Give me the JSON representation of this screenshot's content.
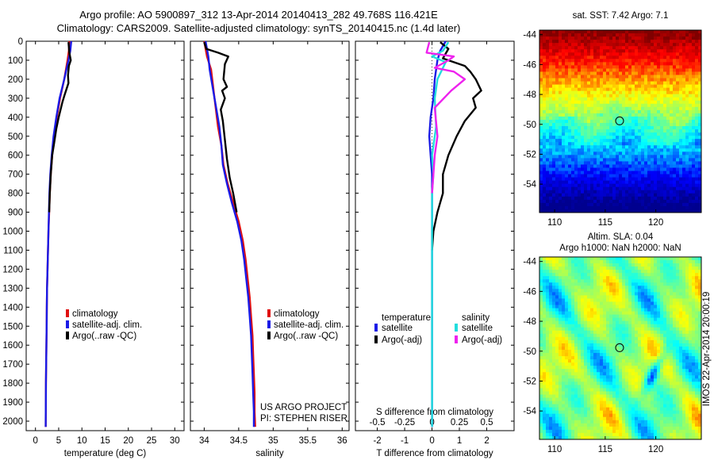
{
  "header": {
    "line1": "Argo profile: AO 5900897_312 13-Apr-2014 20140413_282 49.768S 116.421E",
    "line2": "Climatology: CARS2009. Satellite-adjusted climatology: synTS_20140415.nc (1.4d later)"
  },
  "colors": {
    "climatology": "#e01010",
    "satellite": "#1a1ae6",
    "argo": "#000000",
    "satellite_salinity": "#22dddd",
    "argo_salinity": "#ee22ee"
  },
  "chart_data": [
    {
      "type": "line",
      "name": "temperature-profile",
      "xlabel": "temperature (deg C)",
      "xlim": [
        -2,
        32
      ],
      "ylim": [
        2050,
        0
      ],
      "xticks": [
        0,
        5,
        10,
        15,
        20,
        25,
        30
      ],
      "yticks": [
        0,
        100,
        200,
        300,
        400,
        500,
        600,
        700,
        800,
        900,
        1000,
        1100,
        1200,
        1300,
        1400,
        1500,
        1600,
        1700,
        1800,
        1900,
        2000
      ],
      "legend": {
        "placement": "lower-center",
        "entries": [
          "climatology",
          "satellite-adj. clim.",
          "Argo(..raw -QC)"
        ]
      },
      "series": [
        {
          "name": "climatology",
          "color": "#e01010",
          "x": [
            7.3,
            7.2,
            6.9,
            6.2,
            5.3,
            4.6,
            4.0,
            3.6,
            3.3,
            3.1,
            2.95,
            2.8,
            2.7,
            2.6,
            2.5,
            2.45,
            2.4,
            2.35,
            2.3,
            2.25,
            2.2
          ],
          "y": [
            0,
            50,
            100,
            200,
            300,
            400,
            500,
            600,
            700,
            800,
            900,
            1000,
            1100,
            1200,
            1300,
            1400,
            1500,
            1600,
            1700,
            1800,
            2030
          ]
        },
        {
          "name": "satellite-adj. clim.",
          "color": "#1a1ae6",
          "x": [
            7.7,
            7.5,
            7.1,
            6.2,
            5.2,
            4.5,
            3.9,
            3.5,
            3.2,
            3.0,
            2.9,
            2.8,
            2.7,
            2.6,
            2.5,
            2.45,
            2.4,
            2.35,
            2.3,
            2.25,
            2.2
          ],
          "y": [
            0,
            50,
            100,
            200,
            300,
            400,
            500,
            600,
            700,
            800,
            900,
            1000,
            1100,
            1200,
            1300,
            1400,
            1500,
            1600,
            1700,
            1800,
            2030
          ]
        },
        {
          "name": "Argo(..raw -QC)",
          "color": "#000000",
          "x": [
            7.1,
            7.3,
            7.6,
            7.2,
            7.0,
            7.1,
            6.3,
            5.8,
            5.0,
            4.5,
            4.0,
            3.6,
            3.3,
            3.1,
            2.95
          ],
          "y": [
            5,
            60,
            100,
            130,
            180,
            220,
            280,
            320,
            400,
            460,
            540,
            600,
            700,
            800,
            900
          ]
        }
      ]
    },
    {
      "type": "line",
      "name": "salinity-profile",
      "xlabel": "salinity",
      "xlim": [
        33.8,
        36.1
      ],
      "ylim": [
        2050,
        0
      ],
      "xticks": [
        34,
        34.5,
        35,
        35.5,
        36
      ],
      "legend": {
        "placement": "lower-center",
        "entries": [
          "climatology",
          "satellite-adj. clim.",
          "Argo(..raw -QC)"
        ]
      },
      "series": [
        {
          "name": "climatology",
          "color": "#e01010",
          "x": [
            34.0,
            34.04,
            34.1,
            34.15,
            34.2,
            34.25,
            34.28,
            34.34,
            34.42,
            34.5,
            34.56,
            34.6,
            34.63,
            34.66,
            34.68,
            34.7,
            34.71,
            34.72,
            34.73,
            34.73,
            34.74
          ],
          "y": [
            0,
            80,
            150,
            300,
            450,
            550,
            650,
            750,
            850,
            950,
            1050,
            1150,
            1250,
            1350,
            1450,
            1550,
            1650,
            1750,
            1850,
            1950,
            2030
          ]
        },
        {
          "name": "satellite-adj. clim.",
          "color": "#1a1ae6",
          "x": [
            34.02,
            34.06,
            34.08,
            34.15,
            34.22,
            34.25,
            34.27,
            34.33,
            34.4,
            34.48,
            34.54,
            34.58,
            34.61,
            34.64,
            34.66,
            34.68,
            34.69,
            34.7,
            34.71,
            34.72,
            34.72
          ],
          "y": [
            0,
            80,
            150,
            300,
            450,
            550,
            650,
            750,
            850,
            950,
            1050,
            1150,
            1250,
            1350,
            1450,
            1550,
            1650,
            1750,
            1850,
            1950,
            2030
          ]
        },
        {
          "name": "Argo(..raw -QC)",
          "color": "#000000",
          "x": [
            34.0,
            34.03,
            34.2,
            34.35,
            34.3,
            34.28,
            34.33,
            34.26,
            34.3,
            34.24,
            34.27,
            34.3,
            34.33,
            34.37,
            34.42,
            34.47
          ],
          "y": [
            5,
            40,
            60,
            80,
            120,
            200,
            240,
            260,
            300,
            360,
            420,
            520,
            620,
            720,
            800,
            900
          ]
        }
      ]
    },
    {
      "type": "line",
      "name": "difference-profile",
      "xlabel": "T difference from climatology",
      "xlabel2": "S difference from climatology",
      "xlim": [
        -2.8,
        3.0
      ],
      "ylim": [
        2050,
        0
      ],
      "xticks": [
        -2,
        -1,
        0,
        1,
        2
      ],
      "xticks2": [
        -0.5,
        -0.25,
        0,
        0.25,
        0.5
      ],
      "legend": {
        "placement": "lower-center",
        "temperature_heading": "temperature",
        "salinity_heading": "salinity",
        "entries": [
          "satellite",
          "Argo(-adj)",
          "satellite",
          "Argo(-adj)"
        ]
      },
      "series": [
        {
          "name": "satellite",
          "color": "#1a1ae6",
          "x": [
            0.5,
            0.3,
            0.2,
            0.1,
            0.05,
            -0.05,
            -0.1,
            -0.05,
            0.0,
            0.0,
            0.0,
            0.0,
            0.0,
            0.0,
            0.0
          ],
          "y": [
            0,
            50,
            100,
            200,
            300,
            400,
            500,
            600,
            700,
            800,
            1000,
            1200,
            1500,
            1800,
            2030
          ]
        },
        {
          "name": "Argo(-adj)",
          "color": "#000000",
          "x": [
            0.3,
            0.6,
            0.4,
            1.2,
            1.4,
            1.6,
            1.8,
            1.5,
            1.6,
            1.2,
            0.9,
            0.6,
            0.4,
            0.4,
            0.2,
            0.05,
            0.0
          ],
          "y": [
            5,
            40,
            90,
            130,
            160,
            200,
            260,
            300,
            350,
            420,
            500,
            600,
            700,
            800,
            900,
            1000,
            1100
          ]
        },
        {
          "name": "satellite",
          "color": "#22dddd",
          "x": [
            0.6,
            0.4,
            0.0,
            0.5,
            0.2,
            0.1,
            0.15,
            0.0,
            0.05,
            0.0,
            0.0,
            0.0,
            0.0,
            0.0,
            0.0
          ],
          "y": [
            5,
            50,
            80,
            110,
            200,
            300,
            450,
            600,
            700,
            800,
            1000,
            1200,
            1500,
            1800,
            2030
          ]
        },
        {
          "name": "Argo(-adj)",
          "color": "#ee22ee",
          "x": [
            -0.1,
            -0.2,
            0.8,
            0.6,
            0.1,
            0.8,
            1.2,
            0.7,
            0.1,
            0.2,
            0.1,
            0.05,
            0.0
          ],
          "y": [
            5,
            60,
            80,
            100,
            140,
            160,
            200,
            260,
            350,
            500,
            600,
            700,
            800
          ]
        }
      ]
    },
    {
      "type": "heatmap",
      "name": "sst-map",
      "title": "sat. SST: 7.42 Argo: 7.1",
      "xlim": [
        108.5,
        124.5
      ],
      "ylim": [
        -55.9,
        -43.7
      ],
      "xticks": [
        110,
        115,
        120
      ],
      "yticks": [
        -44,
        -46,
        -48,
        -50,
        -52,
        -54
      ],
      "marker": {
        "lon": 116.421,
        "lat": -49.768
      }
    },
    {
      "type": "heatmap",
      "name": "sla-map",
      "title": "Altim. SLA: 0.04",
      "subtitle": "Argo h1000: NaN h2000: NaN",
      "xlim": [
        108.5,
        124.5
      ],
      "ylim": [
        -55.9,
        -43.7
      ],
      "xticks": [
        110,
        115,
        120
      ],
      "yticks": [
        -44,
        -46,
        -48,
        -50,
        -52,
        -54
      ],
      "marker": {
        "lon": 116.421,
        "lat": -49.768
      }
    }
  ],
  "notes": {
    "project": "US ARGO PROJECT",
    "pi": "PI: STEPHEN RISER",
    "stamp": "IMOS 22-Apr-2014 20:00:19"
  }
}
